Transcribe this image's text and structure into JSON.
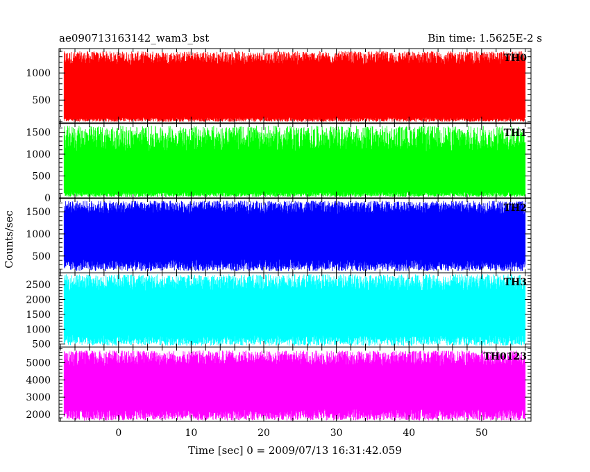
{
  "chart_data": {
    "type": "line",
    "title_left": "ae090713163142_wam3_bst",
    "title_right": "Bin time: 1.5625E-2 s",
    "xlabel": "Time [sec] 0 = 2009/07/13 16:31:42.059",
    "ylabel": "Counts/sec",
    "xlim": [
      -8.2,
      56.8
    ],
    "data_xrange": [
      -7.5,
      56.0
    ],
    "x_ticks": [
      0,
      10,
      20,
      30,
      40,
      50
    ],
    "x_tick_labels": [
      "0",
      "10",
      "20",
      "30",
      "40",
      "50"
    ],
    "panels": [
      {
        "name": "TH0",
        "color": "#ff0000",
        "ylim": [
          80,
          1450
        ],
        "y_ticks": [
          500,
          1000
        ],
        "y_tick_labels": [
          "500",
          "1000"
        ],
        "low_range": [
          100,
          180
        ],
        "high_range": [
          1150,
          1400
        ]
      },
      {
        "name": "TH1",
        "color": "#00ff00",
        "ylim": [
          0,
          1700
        ],
        "y_ticks": [
          0,
          500,
          1000,
          1500
        ],
        "y_tick_labels": [
          "0",
          "500",
          "1000",
          "1500"
        ],
        "low_range": [
          20,
          130
        ],
        "high_range": [
          1050,
          1650
        ]
      },
      {
        "name": "TH2",
        "color": "#0000ff",
        "ylim": [
          120,
          1800
        ],
        "y_ticks": [
          500,
          1000,
          1500
        ],
        "y_tick_labels": [
          "500",
          "1000",
          "1500"
        ],
        "low_range": [
          160,
          420
        ],
        "high_range": [
          1450,
          1750
        ]
      },
      {
        "name": "TH3",
        "color": "#00ffff",
        "ylim": [
          400,
          2900
        ],
        "y_ticks": [
          500,
          1000,
          1500,
          2000,
          2500
        ],
        "y_tick_labels": [
          "500",
          "1000",
          "1500",
          "2000",
          "2500"
        ],
        "low_range": [
          450,
          800
        ],
        "high_range": [
          2300,
          2850
        ]
      },
      {
        "name": "TH0123",
        "color": "#ff00ff",
        "ylim": [
          1600,
          5900
        ],
        "y_ticks": [
          2000,
          3000,
          4000,
          5000
        ],
        "y_tick_labels": [
          "2000",
          "3000",
          "4000",
          "5000"
        ],
        "low_range": [
          1650,
          2300
        ],
        "high_range": [
          4800,
          5700
        ]
      }
    ]
  }
}
